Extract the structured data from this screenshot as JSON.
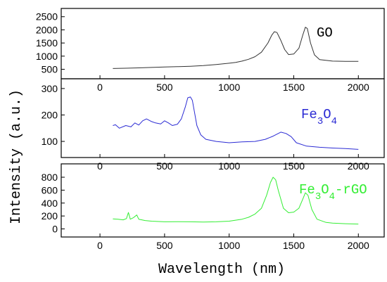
{
  "chart_data": {
    "type": "line",
    "xlabel": "Wavelength (nm)",
    "ylabel": "Intensity (a.u.)",
    "xlim": [
      -300,
      2200
    ],
    "x_ticks": [
      0,
      500,
      1000,
      1500,
      2000
    ],
    "grid": false,
    "layout": "three vertically stacked panels sharing the x axis",
    "panels": [
      {
        "label": "GO",
        "label_parts": [
          {
            "text": "GO",
            "sub": false
          }
        ],
        "color": "#333333",
        "ylim": [
          300,
          2600
        ],
        "y_ticks": [
          500,
          1000,
          1500,
          2000,
          2500
        ],
        "points": [
          [
            100,
            530
          ],
          [
            200,
            540
          ],
          [
            300,
            555
          ],
          [
            400,
            570
          ],
          [
            500,
            585
          ],
          [
            600,
            600
          ],
          [
            700,
            615
          ],
          [
            800,
            640
          ],
          [
            900,
            680
          ],
          [
            1000,
            730
          ],
          [
            1050,
            760
          ],
          [
            1100,
            810
          ],
          [
            1150,
            880
          ],
          [
            1200,
            980
          ],
          [
            1250,
            1150
          ],
          [
            1300,
            1500
          ],
          [
            1330,
            1800
          ],
          [
            1350,
            1930
          ],
          [
            1370,
            1900
          ],
          [
            1400,
            1600
          ],
          [
            1430,
            1250
          ],
          [
            1460,
            1060
          ],
          [
            1500,
            1080
          ],
          [
            1540,
            1300
          ],
          [
            1570,
            1800
          ],
          [
            1590,
            2100
          ],
          [
            1605,
            2050
          ],
          [
            1630,
            1500
          ],
          [
            1660,
            1050
          ],
          [
            1700,
            870
          ],
          [
            1800,
            810
          ],
          [
            1900,
            800
          ],
          [
            2000,
            800
          ]
        ]
      },
      {
        "label": "Fe3O4",
        "label_parts": [
          {
            "text": "Fe",
            "sub": false
          },
          {
            "text": "3",
            "sub": true
          },
          {
            "text": "O",
            "sub": false
          },
          {
            "text": "4",
            "sub": true
          }
        ],
        "color": "#2b2bd4",
        "ylim": [
          55,
          305
        ],
        "y_ticks": [
          100,
          200,
          300
        ],
        "points": [
          [
            100,
            160
          ],
          [
            120,
            163
          ],
          [
            150,
            150
          ],
          [
            200,
            160
          ],
          [
            240,
            155
          ],
          [
            270,
            170
          ],
          [
            300,
            162
          ],
          [
            330,
            178
          ],
          [
            360,
            185
          ],
          [
            400,
            175
          ],
          [
            430,
            170
          ],
          [
            470,
            166
          ],
          [
            500,
            178
          ],
          [
            530,
            170
          ],
          [
            560,
            160
          ],
          [
            600,
            165
          ],
          [
            630,
            185
          ],
          [
            660,
            230
          ],
          [
            680,
            265
          ],
          [
            700,
            268
          ],
          [
            715,
            255
          ],
          [
            730,
            215
          ],
          [
            750,
            160
          ],
          [
            780,
            125
          ],
          [
            820,
            108
          ],
          [
            900,
            100
          ],
          [
            1000,
            95
          ],
          [
            1100,
            98
          ],
          [
            1200,
            100
          ],
          [
            1280,
            108
          ],
          [
            1340,
            120
          ],
          [
            1400,
            135
          ],
          [
            1440,
            130
          ],
          [
            1480,
            118
          ],
          [
            1520,
            95
          ],
          [
            1600,
            82
          ],
          [
            1700,
            78
          ],
          [
            1800,
            75
          ],
          [
            1900,
            73
          ],
          [
            2000,
            70
          ]
        ]
      },
      {
        "label": "Fe3O4-rGO",
        "label_parts": [
          {
            "text": "Fe",
            "sub": false
          },
          {
            "text": "3",
            "sub": true
          },
          {
            "text": "O",
            "sub": false
          },
          {
            "text": "4",
            "sub": true
          },
          {
            "text": "-rGO",
            "sub": false
          }
        ],
        "color": "#33ee33",
        "ylim": [
          -60,
          920
        ],
        "y_ticks": [
          0,
          200,
          400,
          600,
          800
        ],
        "points": [
          [
            100,
            155
          ],
          [
            140,
            150
          ],
          [
            180,
            140
          ],
          [
            205,
            160
          ],
          [
            220,
            255
          ],
          [
            235,
            150
          ],
          [
            260,
            175
          ],
          [
            285,
            215
          ],
          [
            300,
            150
          ],
          [
            350,
            130
          ],
          [
            400,
            120
          ],
          [
            500,
            110
          ],
          [
            600,
            112
          ],
          [
            700,
            110
          ],
          [
            800,
            105
          ],
          [
            900,
            110
          ],
          [
            1000,
            120
          ],
          [
            1100,
            150
          ],
          [
            1150,
            180
          ],
          [
            1200,
            230
          ],
          [
            1250,
            320
          ],
          [
            1290,
            520
          ],
          [
            1320,
            720
          ],
          [
            1340,
            800
          ],
          [
            1360,
            760
          ],
          [
            1380,
            600
          ],
          [
            1420,
            320
          ],
          [
            1460,
            250
          ],
          [
            1500,
            260
          ],
          [
            1540,
            320
          ],
          [
            1570,
            460
          ],
          [
            1590,
            560
          ],
          [
            1610,
            520
          ],
          [
            1640,
            300
          ],
          [
            1680,
            150
          ],
          [
            1750,
            100
          ],
          [
            1800,
            90
          ],
          [
            1900,
            80
          ],
          [
            2000,
            75
          ]
        ]
      }
    ]
  }
}
